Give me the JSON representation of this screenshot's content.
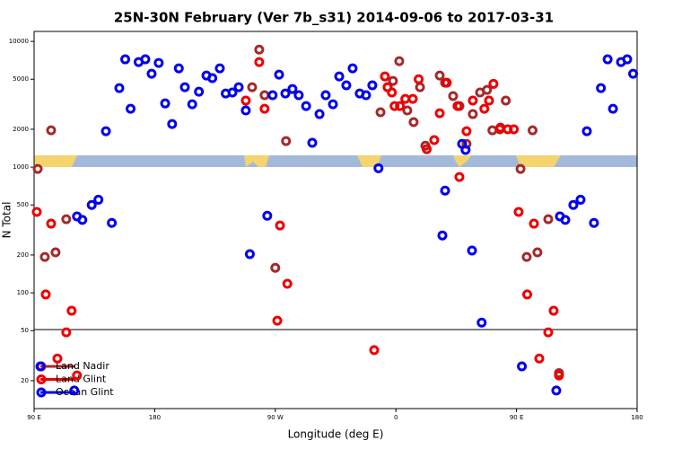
{
  "chart_data": {
    "type": "scatter",
    "title": "25N-30N February (Ver 7b_s31)   2014-09-06 to 2017-03-31",
    "xlabel": "Longitude (deg E)",
    "ylabel": "N Total",
    "xlim": [
      90,
      540
    ],
    "xticks": [
      {
        "value": 90,
        "label": "90 E"
      },
      180,
      {
        "value": 270,
        "label": "90 W"
      },
      {
        "value": 360,
        "label": "0"
      },
      {
        "value": 450,
        "label": "90 E"
      },
      {
        "value": 540,
        "label": "180"
      }
    ],
    "ylim": [
      12,
      12000
    ],
    "ylog": true,
    "yticks": [
      20,
      50,
      100,
      200,
      500,
      1000,
      2000,
      5000,
      10000
    ],
    "legend": "lower left",
    "series": [
      {
        "name": "Land Nadir",
        "color": "#a52a2a",
        "x": [
          102.7,
          252.7,
          258,
          262,
          278,
          348.5,
          353.8,
          357.8,
          362.5,
          368.5,
          373.2,
          378,
          382,
          392.7,
          396.7,
          402.7,
          407.4,
          412.7,
          417.4,
          422.8,
          428,
          432,
          437.5,
          442,
          462,
          92.7,
          98,
          106,
          114,
          270,
          453,
          457.6,
          465.6,
          473.7,
          481.7
        ],
        "values": [
          1960,
          4320,
          8600,
          3730,
          1610,
          2730,
          4320,
          4850,
          6960,
          2820,
          2280,
          4320,
          1480,
          5350,
          4690,
          3670,
          3060,
          1530,
          2640,
          3920,
          4110,
          1960,
          2000,
          3380,
          1960,
          967,
          193,
          210,
          385,
          158,
          967,
          193,
          210,
          385,
          23
        ]
      },
      {
        "name": "Land Glint",
        "color": "#ee0000",
        "x": [
          248,
          258,
          262,
          351.8,
          353.8,
          357,
          359,
          363,
          367,
          372.6,
          377,
          383,
          388.6,
          392.7,
          398,
          406,
          412.7,
          417.4,
          426,
          429.5,
          432.8,
          438,
          443.5,
          448,
          92,
          98.7,
          102.7,
          107.4,
          114,
          118,
          122,
          273.5,
          271.5,
          279,
          343.8,
          407.4,
          451.6,
          458,
          463,
          467,
          473.7,
          477.7,
          481.7
        ],
        "values": [
          3380,
          6850,
          2910,
          5260,
          4320,
          3920,
          3060,
          3060,
          3490,
          3490,
          5000,
          1390,
          1640,
          2680,
          4690,
          3060,
          1930,
          3380,
          2910,
          3380,
          4590,
          2060,
          2000,
          2000,
          440,
          97,
          355,
          30,
          48.5,
          72,
          22,
          343,
          60,
          118,
          35,
          834,
          440,
          97,
          355,
          30,
          48.5,
          72,
          22
        ]
      },
      {
        "name": "Ocean Glint",
        "color": "#0000ee",
        "x": [
          143.6,
          153.6,
          158,
          162,
          168,
          173,
          177.7,
          183,
          187.8,
          193,
          198,
          202.5,
          208,
          213,
          218.6,
          223,
          228.6,
          233,
          238,
          242.7,
          248,
          268,
          272.8,
          277.5,
          282.8,
          287.5,
          293,
          297.6,
          303,
          307.6,
          313,
          317.7,
          323,
          327.7,
          333,
          337.7,
          342.4,
          347,
          409.4,
          412,
          502.5,
          513,
          518,
          522,
          528,
          532.6,
          537,
          94.7,
          122,
          126,
          133,
          138,
          148,
          251,
          264,
          396.7,
          394.7,
          416.8,
          424,
          454,
          479.7,
          482.4,
          486.4,
          492.4,
          497.8,
          507.8,
          120
        ],
        "values": [
          1930,
          4250,
          7200,
          2910,
          6850,
          7200,
          5530,
          6740,
          3210,
          2200,
          6100,
          4320,
          3160,
          3980,
          5350,
          5100,
          6100,
          3850,
          3920,
          4320,
          2820,
          3730,
          5440,
          3850,
          4180,
          3730,
          3060,
          1560,
          2640,
          3730,
          3160,
          5260,
          4470,
          6100,
          3850,
          3730,
          4470,
          980,
          1530,
          1370,
          1930,
          4250,
          7200,
          2910,
          6850,
          7200,
          5530,
          26,
          405,
          380,
          500,
          550,
          360,
          203,
          410,
          650,
          286,
          217,
          58,
          26,
          16.7,
          405,
          380,
          500,
          550,
          360,
          16.7
        ]
      }
    ]
  }
}
